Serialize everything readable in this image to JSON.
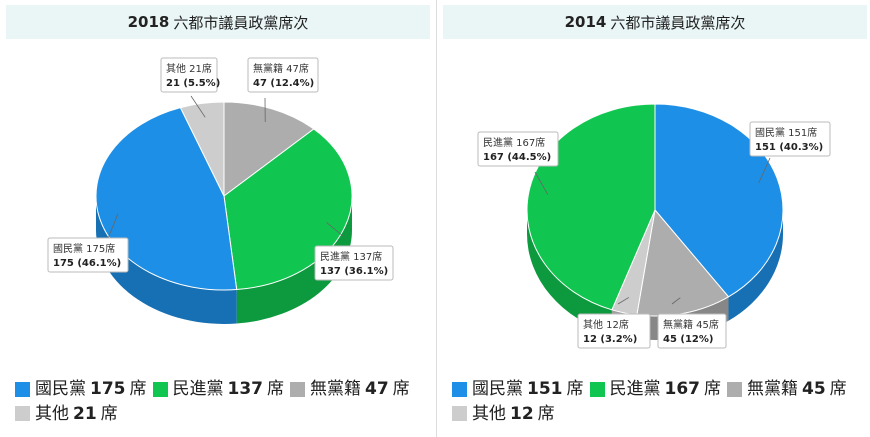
{
  "colors": {
    "kmt": "#1e8fe6",
    "dpp": "#11c650",
    "ind": "#adadad",
    "other": "#cdcdcd"
  },
  "chart_data": [
    {
      "type": "pie",
      "title": "2018 六都市議員政黨席次",
      "title_year": "2018",
      "title_rest": "六都市議員政黨席次",
      "slices": [
        {
          "key": "ind",
          "label": "無黨籍 47席",
          "value": 47,
          "detail": "47 (12.4%)"
        },
        {
          "key": "dpp",
          "label": "民進黨 137席",
          "value": 137,
          "detail": "137 (36.1%)"
        },
        {
          "key": "kmt",
          "label": "國民黨 175席",
          "value": 175,
          "detail": "175 (46.1%)"
        },
        {
          "key": "other",
          "label": "其他 21席",
          "value": 21,
          "detail": "21 (5.5%)"
        }
      ],
      "legend": [
        {
          "key": "kmt",
          "name": "國民黨",
          "count": "175",
          "unit": "席"
        },
        {
          "key": "dpp",
          "name": "民進黨",
          "count": "137",
          "unit": "席"
        },
        {
          "key": "ind",
          "name": "無黨籍",
          "count": "47",
          "unit": "席"
        },
        {
          "key": "other",
          "name": "其他",
          "count": "21",
          "unit": "席"
        }
      ]
    },
    {
      "type": "pie",
      "title": "2014 六都市議員政黨席次",
      "title_year": "2014",
      "title_rest": "六都市議員政黨席次",
      "slices": [
        {
          "key": "kmt",
          "label": "國民黨 151席",
          "value": 151,
          "detail": "151 (40.3%)"
        },
        {
          "key": "ind",
          "label": "無黨籍 45席",
          "value": 45,
          "detail": "45 (12%)"
        },
        {
          "key": "other",
          "label": "其他 12席",
          "value": 12,
          "detail": "12 (3.2%)"
        },
        {
          "key": "dpp",
          "label": "民進黨 167席",
          "value": 167,
          "detail": "167 (44.5%)"
        }
      ],
      "legend": [
        {
          "key": "kmt",
          "name": "國民黨",
          "count": "151",
          "unit": "席"
        },
        {
          "key": "dpp",
          "name": "民進黨",
          "count": "167",
          "unit": "席"
        },
        {
          "key": "ind",
          "name": "無黨籍",
          "count": "45",
          "unit": "席"
        },
        {
          "key": "other",
          "name": "其他",
          "count": "12",
          "unit": "席"
        }
      ]
    }
  ]
}
